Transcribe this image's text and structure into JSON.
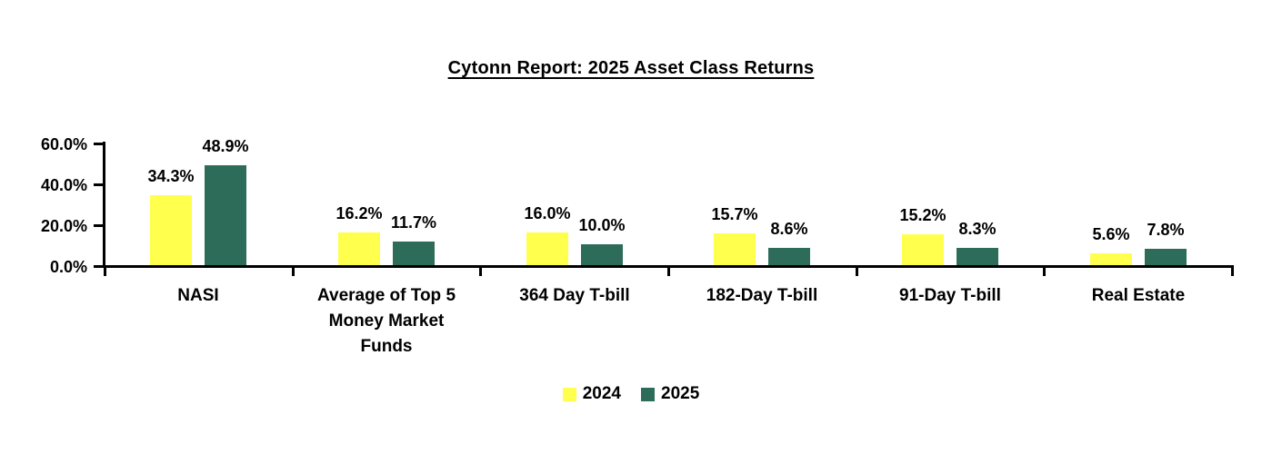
{
  "title": "Cytonn Report: 2025 Asset Class Returns",
  "chart_data": {
    "type": "bar",
    "title": "Cytonn Report: 2025 Asset Class Returns",
    "categories": [
      "NASI",
      "Average of Top 5 Money Market Funds",
      "364 Day T-bill",
      "182-Day T-bill",
      "91-Day T-bill",
      "Real Estate"
    ],
    "series": [
      {
        "name": "2024",
        "color": "#FFFF4D",
        "values": [
          34.3,
          16.2,
          16.0,
          15.7,
          15.2,
          5.6
        ],
        "labels": [
          "34.3%",
          "16.2%",
          "16.0%",
          "15.7%",
          "15.2%",
          "5.6%"
        ]
      },
      {
        "name": "2025",
        "color": "#2E6C5A",
        "values": [
          48.9,
          11.7,
          10.0,
          8.6,
          8.3,
          7.8
        ],
        "labels": [
          "48.9%",
          "11.7%",
          "10.0%",
          "8.6%",
          "8.3%",
          "7.8%"
        ]
      }
    ],
    "y_axis": {
      "ticks": [
        "0.0%",
        "20.0%",
        "40.0%",
        "60.0%"
      ],
      "tick_values": [
        0,
        20,
        40,
        60
      ],
      "min": 0,
      "max": 60
    },
    "legend": [
      "2024",
      "2025"
    ],
    "legend_position": "bottom",
    "grid": false,
    "data_labels": "outside-end"
  },
  "colors": {
    "background": "#FFFFFF",
    "axis": "#000000",
    "text": "#000000",
    "bar_2024": "#FFFF4D",
    "bar_2025": "#2E6C5A"
  }
}
